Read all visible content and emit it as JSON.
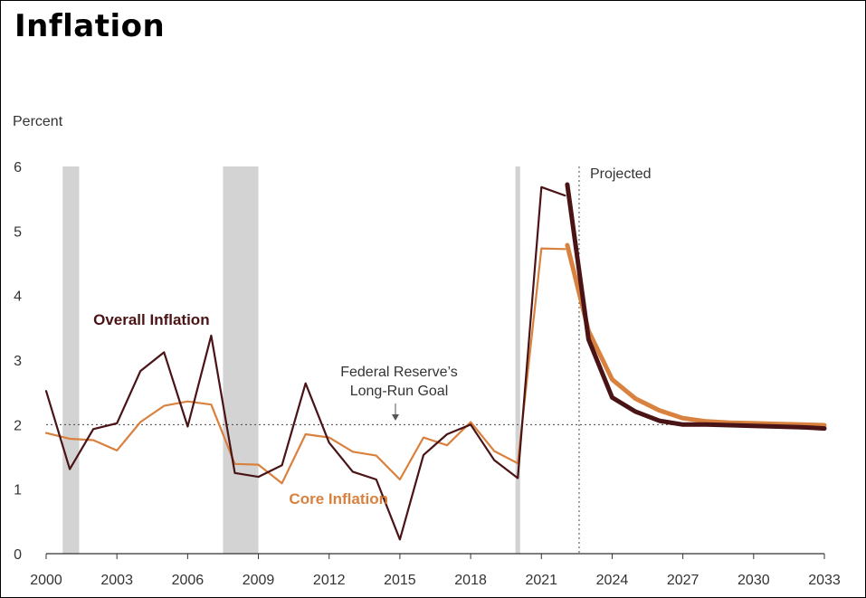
{
  "title": "Inflation",
  "chart_data": {
    "type": "line",
    "title": "Inflation",
    "ylabel": "Percent",
    "xlabel": "",
    "xlim": [
      2000,
      2033
    ],
    "ylim": [
      0,
      6
    ],
    "y_ticks": [
      0,
      1,
      2,
      3,
      4,
      5,
      6
    ],
    "x_ticks": [
      2000,
      2003,
      2006,
      2009,
      2012,
      2015,
      2018,
      2021,
      2024,
      2027,
      2030,
      2033
    ],
    "grid": false,
    "recession_shading": [
      [
        2000.7,
        2001.4
      ],
      [
        2007.5,
        2009.0
      ],
      [
        2019.9,
        2020.1
      ]
    ],
    "reference_line": {
      "y": 2,
      "label_line1": "Federal Reserve’s",
      "label_line2": "Long-Run Goal",
      "style": "dotted"
    },
    "projection_start": {
      "x": 2022.6,
      "label": "Projected",
      "style": "dotted"
    },
    "colors": {
      "overall": "#4a1416",
      "core": "#d9813e",
      "shading": "#d3d3d3"
    },
    "series": [
      {
        "name": "Overall Inflation",
        "x": [
          2000,
          2001,
          2002,
          2003,
          2004,
          2005,
          2006,
          2007,
          2008,
          2009,
          2010,
          2011,
          2012,
          2013,
          2014,
          2015,
          2016,
          2017,
          2018,
          2019,
          2020,
          2021,
          2022
        ],
        "values": [
          2.52,
          1.31,
          1.93,
          2.02,
          2.83,
          3.12,
          1.97,
          3.38,
          1.25,
          1.19,
          1.37,
          2.64,
          1.72,
          1.27,
          1.15,
          0.22,
          1.53,
          1.85,
          2.0,
          1.45,
          1.17,
          5.68,
          5.55
        ]
      },
      {
        "name": "Core Inflation",
        "x": [
          2000,
          2001,
          2002,
          2003,
          2004,
          2005,
          2006,
          2007,
          2008,
          2009,
          2010,
          2011,
          2012,
          2013,
          2014,
          2015,
          2016,
          2017,
          2018,
          2019,
          2020,
          2021,
          2022
        ],
        "values": [
          1.87,
          1.78,
          1.76,
          1.6,
          2.04,
          2.29,
          2.36,
          2.31,
          1.39,
          1.38,
          1.09,
          1.85,
          1.8,
          1.58,
          1.52,
          1.15,
          1.8,
          1.68,
          2.04,
          1.59,
          1.4,
          4.73,
          4.72
        ]
      },
      {
        "name": "Overall Inflation (projected)",
        "x": [
          2022.1,
          2023,
          2024,
          2025,
          2026,
          2027,
          2028,
          2029,
          2030,
          2031,
          2032,
          2033
        ],
        "values": [
          5.72,
          3.32,
          2.42,
          2.2,
          2.06,
          2.0,
          2.0,
          1.99,
          1.98,
          1.97,
          1.96,
          1.94
        ]
      },
      {
        "name": "Core Inflation (projected)",
        "x": [
          2022.1,
          2023,
          2024,
          2025,
          2026,
          2027,
          2028,
          2029,
          2030,
          2031,
          2032,
          2033
        ],
        "values": [
          4.78,
          3.45,
          2.7,
          2.4,
          2.22,
          2.1,
          2.05,
          2.03,
          2.02,
          2.01,
          2.0,
          1.99
        ]
      }
    ],
    "annotations": [
      {
        "text": "Overall Inflation",
        "x": 2002.0,
        "y": 3.55,
        "color": "#4a1416"
      },
      {
        "text": "Core Inflation",
        "x": 2010.3,
        "y": 0.77,
        "color": "#d9813e"
      }
    ]
  }
}
